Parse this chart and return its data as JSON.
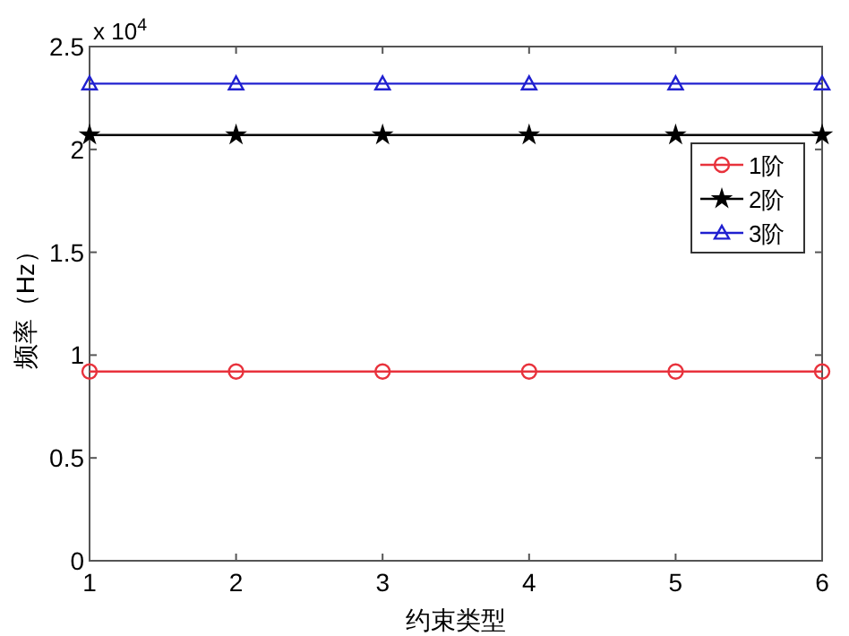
{
  "chart_data": {
    "type": "line",
    "xlabel": "约束类型",
    "ylabel": "频率（Hz）",
    "annotations": [
      "x 10$^{4}$"
    ],
    "x": [
      1,
      2,
      3,
      4,
      5,
      6
    ],
    "xlim": [
      1,
      6
    ],
    "xticks": [
      1,
      2,
      3,
      4,
      5,
      6
    ],
    "ylim": [
      0,
      2.5
    ],
    "yticks": [
      0,
      0.5,
      1,
      1.5,
      2,
      2.5
    ],
    "series": [
      {
        "name": "1阶",
        "color": "#e8323c",
        "marker": "circle",
        "values": [
          0.92,
          0.92,
          0.92,
          0.92,
          0.92,
          0.92
        ]
      },
      {
        "name": "2阶",
        "color": "#000000",
        "marker": "star",
        "values": [
          2.07,
          2.07,
          2.07,
          2.07,
          2.07,
          2.07
        ]
      },
      {
        "name": "3阶",
        "color": "#2020d0",
        "marker": "triangle",
        "values": [
          2.32,
          2.32,
          2.32,
          2.32,
          2.32,
          2.32
        ]
      }
    ],
    "legend": "right",
    "grid": false,
    "line_style": "solid"
  }
}
